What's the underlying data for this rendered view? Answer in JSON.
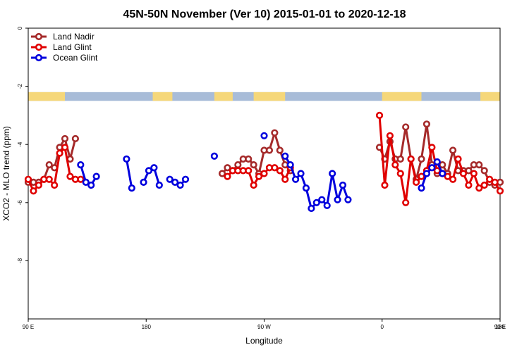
{
  "chart_data": {
    "type": "line",
    "title": "45N-50N November (Ver 10)   2015-01-01 to 2020-12-18",
    "xlabel": "Longitude",
    "ylabel": "XCO2 - MLO trend (ppm)",
    "xlim": [
      90,
      450
    ],
    "ylim": [
      -10,
      0
    ],
    "x_ticks": [
      {
        "value": 90,
        "label": "90 E"
      },
      {
        "value": 180,
        "label": "180"
      },
      {
        "value": 270,
        "label": "90 W"
      },
      {
        "value": 360,
        "label": "0"
      },
      {
        "value": 450,
        "label": "90 E"
      },
      {
        "value": 540,
        "label": "180"
      }
    ],
    "y_ticks": [
      {
        "value": 0,
        "label": "0"
      },
      {
        "value": -2,
        "label": "-2"
      },
      {
        "value": -4,
        "label": "-4"
      },
      {
        "value": -6,
        "label": "-6"
      },
      {
        "value": -8,
        "label": "-8"
      }
    ],
    "legend_position": "top-left",
    "band": {
      "y_range": [
        -2.5,
        -2.2
      ],
      "ocean_color": "#a8bcd8",
      "land_color": "#f5d77a"
    },
    "series": [
      {
        "name": "Land Nadir",
        "color": "#a52a2a",
        "segments": [
          [
            [
              90,
              -5.3
            ],
            [
              94,
              -5.3
            ],
            [
              98,
              -5.3
            ],
            [
              102,
              -5.2
            ],
            [
              106,
              -4.7
            ],
            [
              110,
              -4.8
            ],
            [
              114,
              -4.1
            ],
            [
              118,
              -3.8
            ],
            [
              122,
              -4.5
            ],
            [
              126,
              -3.8
            ]
          ],
          [
            [
              238,
              -5.0
            ],
            [
              242,
              -4.8
            ],
            [
              246,
              -4.9
            ],
            [
              250,
              -4.7
            ],
            [
              254,
              -4.5
            ],
            [
              258,
              -4.5
            ],
            [
              262,
              -4.7
            ],
            [
              266,
              -5.0
            ],
            [
              270,
              -4.2
            ],
            [
              274,
              -4.2
            ],
            [
              278,
              -3.6
            ],
            [
              282,
              -4.2
            ],
            [
              286,
              -4.7
            ],
            [
              290,
              -4.9
            ]
          ],
          [
            [
              358,
              -4.1
            ],
            [
              362,
              -4.5
            ],
            [
              366,
              -3.9
            ],
            [
              370,
              -4.5
            ],
            [
              374,
              -4.5
            ],
            [
              378,
              -3.4
            ],
            [
              382,
              -4.5
            ],
            [
              386,
              -5.2
            ],
            [
              390,
              -4.5
            ],
            [
              394,
              -3.3
            ],
            [
              398,
              -4.7
            ],
            [
              402,
              -5.0
            ],
            [
              406,
              -4.7
            ],
            [
              410,
              -5.0
            ],
            [
              414,
              -4.2
            ],
            [
              418,
              -4.9
            ],
            [
              422,
              -4.9
            ],
            [
              426,
              -4.9
            ],
            [
              430,
              -4.7
            ],
            [
              434,
              -4.7
            ],
            [
              438,
              -4.9
            ],
            [
              442,
              -5.3
            ],
            [
              446,
              -5.4
            ],
            [
              450,
              -5.3
            ]
          ]
        ]
      },
      {
        "name": "Land Glint",
        "color": "#e00000",
        "segments": [
          [
            [
              90,
              -5.2
            ],
            [
              94,
              -5.6
            ],
            [
              98,
              -5.4
            ],
            [
              102,
              -5.2
            ],
            [
              106,
              -5.2
            ],
            [
              110,
              -5.4
            ],
            [
              114,
              -4.3
            ],
            [
              118,
              -4.1
            ],
            [
              122,
              -5.1
            ],
            [
              126,
              -5.2
            ],
            [
              130,
              -5.2
            ]
          ],
          [
            [
              242,
              -5.1
            ],
            [
              246,
              -4.9
            ],
            [
              250,
              -4.9
            ],
            [
              254,
              -4.9
            ],
            [
              258,
              -4.9
            ],
            [
              262,
              -5.4
            ],
            [
              266,
              -5.1
            ],
            [
              270,
              -5.0
            ],
            [
              274,
              -4.8
            ],
            [
              278,
              -4.8
            ],
            [
              282,
              -4.9
            ],
            [
              286,
              -5.2
            ],
            [
              290,
              -4.8
            ]
          ],
          [
            [
              358,
              -3.0
            ],
            [
              362,
              -5.4
            ],
            [
              366,
              -3.7
            ],
            [
              370,
              -4.7
            ],
            [
              374,
              -5.0
            ],
            [
              378,
              -6.0
            ],
            [
              382,
              -4.5
            ],
            [
              386,
              -5.3
            ],
            [
              390,
              -5.1
            ],
            [
              394,
              -4.9
            ],
            [
              398,
              -4.1
            ],
            [
              402,
              -4.9
            ],
            [
              406,
              -5.0
            ],
            [
              410,
              -5.1
            ],
            [
              414,
              -5.2
            ],
            [
              418,
              -4.5
            ],
            [
              422,
              -5.0
            ],
            [
              426,
              -5.4
            ],
            [
              430,
              -5.0
            ],
            [
              434,
              -5.5
            ],
            [
              438,
              -5.4
            ],
            [
              442,
              -5.2
            ],
            [
              446,
              -5.3
            ],
            [
              450,
              -5.6
            ]
          ]
        ]
      },
      {
        "name": "Ocean Glint",
        "color": "#0000dd",
        "segments": [
          [
            [
              130,
              -4.7
            ],
            [
              134,
              -5.3
            ],
            [
              138,
              -5.4
            ],
            [
              142,
              -5.1
            ]
          ],
          [
            [
              165,
              -4.5
            ],
            [
              169,
              -5.5
            ]
          ],
          [
            [
              178,
              -5.3
            ],
            [
              182,
              -4.9
            ],
            [
              186,
              -4.8
            ],
            [
              190,
              -5.4
            ]
          ],
          [
            [
              198,
              -5.2
            ],
            [
              202,
              -5.3
            ],
            [
              206,
              -5.4
            ],
            [
              210,
              -5.2
            ]
          ],
          [
            [
              232,
              -4.4
            ]
          ],
          [
            [
              270,
              -3.7
            ]
          ],
          [
            [
              286,
              -4.4
            ],
            [
              290,
              -4.7
            ],
            [
              294,
              -5.2
            ],
            [
              298,
              -5.0
            ],
            [
              302,
              -5.5
            ],
            [
              306,
              -6.2
            ],
            [
              310,
              -6.0
            ],
            [
              314,
              -5.9
            ],
            [
              318,
              -6.1
            ],
            [
              322,
              -5.0
            ],
            [
              326,
              -5.9
            ],
            [
              330,
              -5.4
            ],
            [
              334,
              -5.9
            ]
          ],
          [
            [
              390,
              -5.5
            ],
            [
              394,
              -5.0
            ],
            [
              398,
              -4.8
            ],
            [
              402,
              -4.6
            ],
            [
              406,
              -5.0
            ]
          ]
        ]
      }
    ]
  }
}
